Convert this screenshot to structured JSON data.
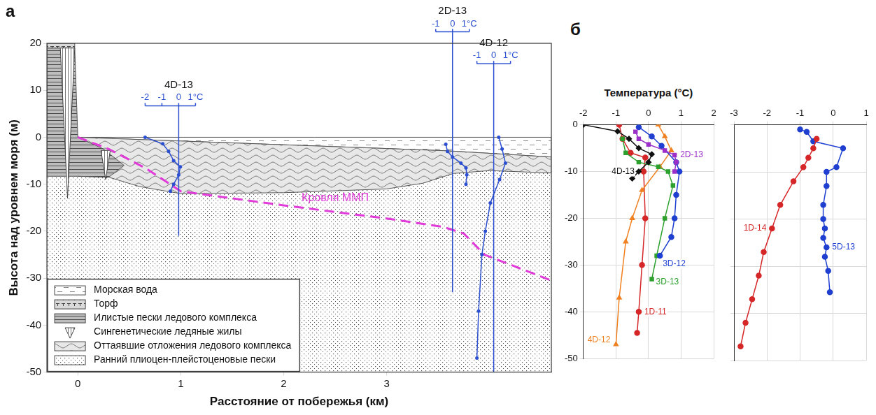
{
  "chart_data": [
    {
      "type": "cross_section",
      "panel_label": "а",
      "x_label": "Расстояние от побережья (км)",
      "y_label": "Высота над уровнем моря (м)",
      "xlim": [
        -0.3,
        4.6
      ],
      "xticks": [
        0,
        1,
        2,
        3
      ],
      "ylim": [
        -50,
        20
      ],
      "yticks": [
        -50,
        -40,
        -30,
        -20,
        -10,
        0,
        10,
        20
      ],
      "grid": false,
      "legend": "lower left",
      "units": [
        {
          "name": "Морская вода",
          "color": "#ffffff",
          "outline": [
            [
              0,
              0
            ],
            [
              4.6,
              0
            ],
            [
              4.6,
              -4.2
            ],
            [
              3.6,
              -2.9
            ],
            [
              3,
              -2.4
            ],
            [
              2,
              -1.6
            ],
            [
              1,
              -0.8
            ],
            [
              0,
              0
            ]
          ]
        },
        {
          "name": "Торф",
          "color": "#d9d9d9",
          "outline": [
            [
              -0.3,
              20
            ],
            [
              -0.03,
              20
            ],
            [
              -0.03,
              19
            ],
            [
              -0.3,
              19
            ]
          ]
        },
        {
          "name": "Илистые пески ледового комплекса",
          "color": "#bdbdbd",
          "outline": [
            [
              -0.3,
              19
            ],
            [
              -0.03,
              19
            ],
            [
              0,
              0
            ],
            [
              0.25,
              -2.5
            ],
            [
              0.45,
              -6
            ],
            [
              0.3,
              -8.5
            ],
            [
              0,
              -8.3
            ],
            [
              -0.3,
              -8.3
            ]
          ]
        },
        {
          "name": "Сингенетические ледяные жилы",
          "color": "#ffffff",
          "wedges": [
            {
              "x": -0.1,
              "top": 19,
              "bottom": -13,
              "width": 0.14
            },
            {
              "x": 0.27,
              "top": -2.8,
              "bottom": -9,
              "width": 0.09
            }
          ]
        },
        {
          "name": "Оттаявшие отложения ледового комплекса",
          "color": "#e8e8e8",
          "outline": [
            [
              0,
              0
            ],
            [
              1,
              -0.8
            ],
            [
              2,
              -1.6
            ],
            [
              3,
              -2.4
            ],
            [
              3.6,
              -2.9
            ],
            [
              4.6,
              -4.2
            ],
            [
              4.6,
              -7.6
            ],
            [
              4.0,
              -7.1
            ],
            [
              3.65,
              -7.7
            ],
            [
              3.35,
              -9.8
            ],
            [
              3,
              -11
            ],
            [
              2,
              -11.8
            ],
            [
              1,
              -12
            ],
            [
              0.6,
              -10.5
            ],
            [
              0.3,
              -8.5
            ],
            [
              0,
              -8.3
            ]
          ]
        },
        {
          "name": "Ранний плиоцен-плейстоценовые пески",
          "color": "#ffffff",
          "outline": [
            [
              -0.3,
              0
            ],
            [
              4.6,
              0
            ],
            [
              4.6,
              -50
            ],
            [
              -0.3,
              -50
            ]
          ]
        }
      ],
      "permafrost_table": {
        "name": "Кровля ММП",
        "color": "#e03ad8",
        "line_style": "dashed",
        "x": [
          0,
          0.3,
          0.66,
          1.0,
          2.0,
          3.0,
          3.55,
          3.75,
          3.95,
          4.6
        ],
        "y": [
          0,
          -2.5,
          -6.6,
          -11.5,
          -14.5,
          -17.3,
          -19.1,
          -20.5,
          -25,
          -30.5
        ]
      },
      "boreholes": [
        {
          "name": "4D-13",
          "x": 0.98,
          "bottom": -21,
          "color": "#2b4fd0",
          "tticks": [
            -2,
            -1,
            0,
            {
              "value": 1,
              "label": "1°C"
            }
          ]
        },
        {
          "name": "2D-13",
          "x": 3.64,
          "bottom": -33,
          "color": "#2b4fd0",
          "tticks": [
            -1,
            0,
            {
              "value": 1,
              "label": "1°C"
            }
          ]
        },
        {
          "name": "4D-12",
          "x": 4.04,
          "bottom": -50,
          "color": "#2b4fd0",
          "tticks": [
            -1,
            0,
            {
              "value": 1,
              "label": "1°C"
            }
          ]
        }
      ]
    },
    {
      "type": "line",
      "panel_label": "б",
      "x_label": "Температура (°C)",
      "xlim": [
        -2,
        2
      ],
      "xticks": [
        -2,
        -1,
        0,
        1,
        2
      ],
      "ylim": [
        -50,
        0
      ],
      "yticks": [
        -50,
        -40,
        -30,
        -20,
        -10,
        0
      ],
      "grid": true,
      "series": [
        {
          "name": "4D-13",
          "color": "#111111",
          "marker": "diamond",
          "x": [
            -2,
            -0.95,
            -0.6,
            -0.3,
            0.1,
            0.0,
            -0.3,
            -0.5
          ],
          "y": [
            0,
            -1.4,
            -3,
            -5,
            -6.3,
            -8,
            -10,
            -11.5
          ]
        },
        {
          "name": "2D-13",
          "color": "#9b30c8",
          "marker": "square",
          "x": [
            -0.4,
            -0.3,
            0.0,
            0.5,
            0.8,
            0.85,
            0.8
          ],
          "y": [
            -1.5,
            -3,
            -4.2,
            -5.5,
            -6.5,
            -8,
            -10
          ]
        },
        {
          "name": "3D-12",
          "color": "#1f3fd0",
          "marker": "circle",
          "x": [
            -0.3,
            0.1,
            0.4,
            0.85,
            0.95,
            0.85,
            0.8,
            0.7,
            0.35
          ],
          "y": [
            -0.5,
            -2.5,
            -4.5,
            -8,
            -10,
            -15,
            -20,
            -24,
            -28
          ]
        },
        {
          "name": "3D-13",
          "color": "#2ca02c",
          "marker": "square",
          "x": [
            -0.8,
            -0.7,
            -0.3,
            0.3,
            0.6,
            0.75,
            0.5,
            0.25,
            0.1
          ],
          "y": [
            -3,
            -6,
            -8,
            -9,
            -10,
            -13,
            -20,
            -28,
            -33
          ]
        },
        {
          "name": "4D-12",
          "color": "#f08020",
          "marker": "triangle",
          "x": [
            0.3,
            0.5,
            0.7,
            0.35,
            -0.2,
            -0.5,
            -0.7,
            -0.9,
            -1.0
          ],
          "y": [
            0,
            -2.5,
            -5.5,
            -9,
            -14,
            -20,
            -25,
            -37,
            -47
          ]
        },
        {
          "name": "1D-11",
          "color": "#d62728",
          "marker": "circle",
          "x": [
            -0.9,
            -0.8,
            -0.55,
            -0.1,
            -0.15,
            -0.1,
            -0.2,
            -0.3,
            -0.35
          ],
          "y": [
            0,
            -3,
            -6,
            -7,
            -10,
            -20,
            -30,
            -40,
            -44.5
          ]
        }
      ]
    },
    {
      "type": "line",
      "xlim": [
        -3,
        1
      ],
      "xticks": [
        -3,
        -2,
        -1,
        0,
        1
      ],
      "ylim": [
        -50,
        0
      ],
      "yticks": [
        -50,
        -40,
        -30,
        -20,
        -10,
        0
      ],
      "grid": true,
      "tick_labels": "x",
      "series": [
        {
          "name": "1D-14",
          "color": "#d62728",
          "marker": "circle",
          "x": [
            -0.5,
            -0.6,
            -0.75,
            -0.9,
            -1.2,
            -1.6,
            -1.85,
            -2.1,
            -2.25,
            -2.45,
            -2.65,
            -2.8
          ],
          "y": [
            -3,
            -5,
            -7,
            -9,
            -12,
            -17,
            -22,
            -27,
            -32,
            -37,
            -42,
            -47
          ]
        },
        {
          "name": "5D-13",
          "color": "#1f3fd0",
          "marker": "circle",
          "x": [
            -1.0,
            -0.8,
            -0.6,
            0.3,
            0.1,
            -0.2,
            -0.2,
            -0.3,
            -0.3,
            -0.25,
            -0.3,
            -0.2,
            -0.25,
            -0.15,
            -0.1
          ],
          "y": [
            -1,
            -1.5,
            -3.5,
            -5,
            -9,
            -10,
            -13,
            -17,
            -20,
            -22,
            -24,
            -26,
            -28,
            -31,
            -35.5
          ]
        }
      ]
    }
  ]
}
